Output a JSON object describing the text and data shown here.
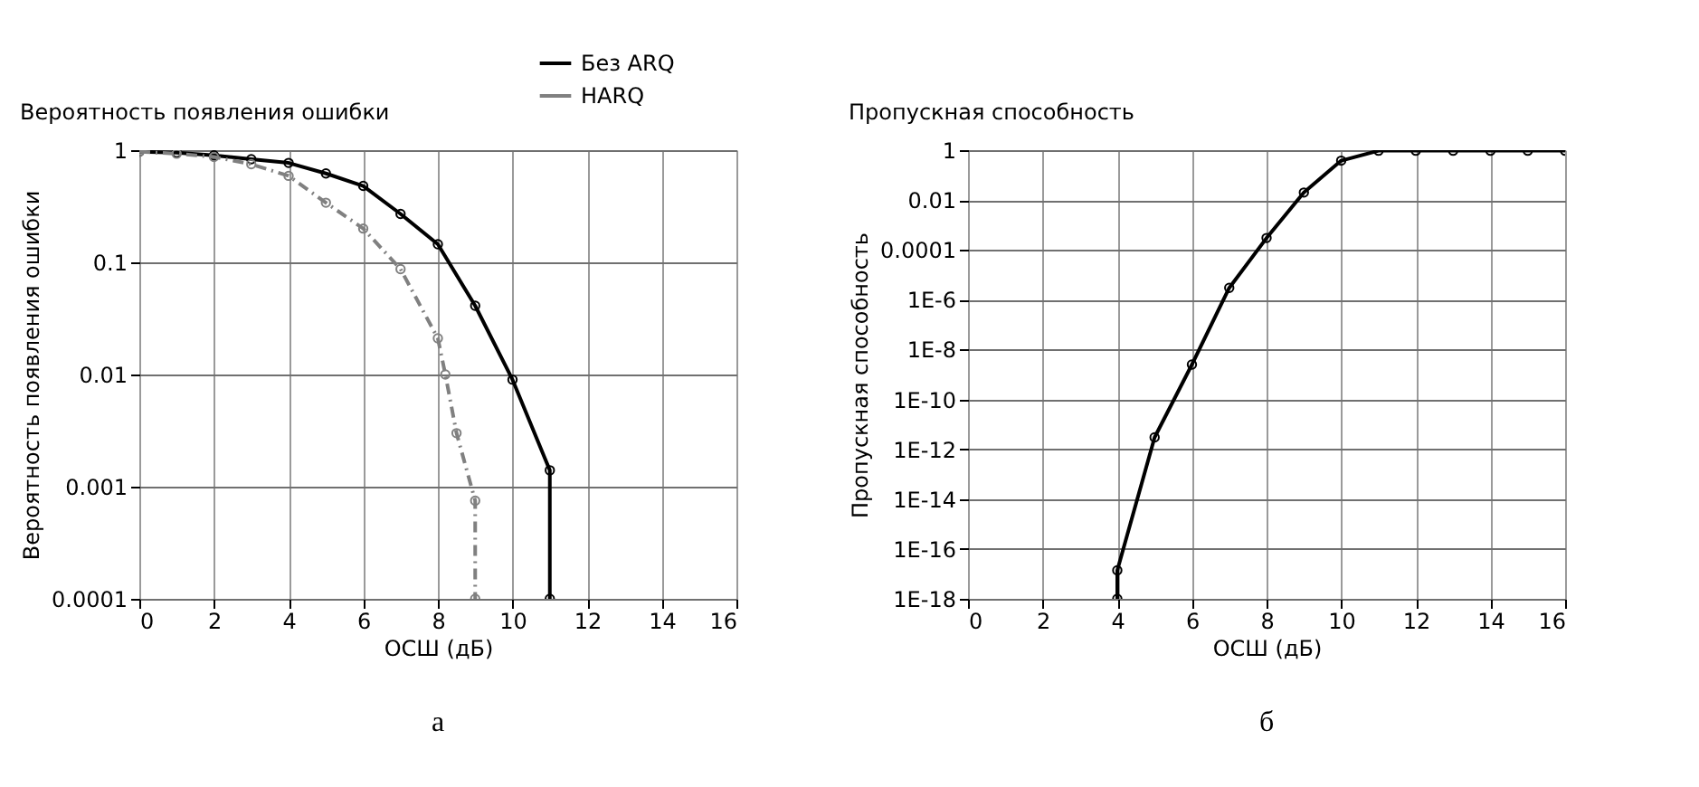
{
  "chart_data": [
    {
      "type": "line",
      "title": "Вероятность появления ошибки",
      "xlabel": "ОСШ (дБ)",
      "ylabel": "Вероятность появления ошибки",
      "log": "y",
      "grid": true,
      "legend": "top right",
      "marker": "circle",
      "xlim": [
        0,
        16
      ],
      "xticks": [
        0,
        2,
        4,
        6,
        8,
        10,
        12,
        14,
        16
      ],
      "ylim": [
        0.0001,
        1
      ],
      "yticks": [
        0.0001,
        0.001,
        0.01,
        0.1,
        1
      ],
      "series": [
        {
          "name": "Без ARQ",
          "color": "#000000",
          "line_style": "solid",
          "x": [
            0,
            1,
            2,
            3,
            4,
            5,
            6,
            7,
            8,
            9,
            10,
            11,
            11
          ],
          "values": [
            0.97,
            0.95,
            0.9,
            0.83,
            0.77,
            0.62,
            0.48,
            0.27,
            0.145,
            0.041,
            0.009,
            0.0014,
            0.0001
          ]
        },
        {
          "name": "HARQ",
          "color": "#808080",
          "line_style": "dashed",
          "x": [
            0,
            1,
            2,
            3,
            4,
            5,
            6,
            7,
            8,
            8.2,
            8.5,
            9,
            9
          ],
          "values": [
            0.97,
            0.93,
            0.87,
            0.75,
            0.59,
            0.34,
            0.2,
            0.087,
            0.021,
            0.01,
            0.003,
            0.00075,
            0.0001
          ]
        }
      ],
      "annotations": [
        "а"
      ]
    },
    {
      "type": "line",
      "title": "Пропускная способность",
      "xlabel": "ОСШ (дБ)",
      "ylabel": "Пропускная способность",
      "log": "y",
      "grid": true,
      "marker": "circle",
      "xlim": [
        0,
        16
      ],
      "xticks": [
        0,
        2,
        4,
        6,
        8,
        10,
        12,
        14,
        16
      ],
      "ylim": [
        1e-18,
        1
      ],
      "yticks": [
        1,
        0.01,
        0.0001,
        {
          "value": 1e-06,
          "label": "1E-6"
        },
        {
          "value": 1e-08,
          "label": "1E-8"
        },
        {
          "value": 1e-10,
          "label": "1E-10"
        },
        {
          "value": 1e-12,
          "label": "1E-12"
        },
        {
          "value": 1e-14,
          "label": "1E-14"
        },
        {
          "value": 1e-16,
          "label": "1E-16"
        },
        {
          "value": 1e-18,
          "label": "1E-18"
        }
      ],
      "series": [
        {
          "color": "#000000",
          "line_style": "solid",
          "x": [
            4,
            4,
            5,
            6,
            7,
            8,
            9,
            10,
            11,
            12,
            13,
            14,
            15,
            16
          ],
          "values": [
            1e-18,
            1.4e-17,
            3e-12,
            2.5e-09,
            3e-06,
            0.0003,
            0.02,
            0.38,
            0.95,
            0.95,
            0.95,
            0.95,
            0.95,
            0.95
          ]
        }
      ],
      "annotations": [
        "б"
      ]
    }
  ]
}
